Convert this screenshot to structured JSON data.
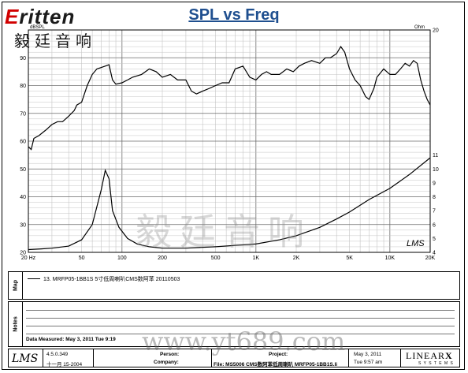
{
  "logo": {
    "brand_prefix": "E",
    "brand_rest": "ritten",
    "chinese": "毅廷音响"
  },
  "title": "SPL vs Freq",
  "chart_data": {
    "type": "line",
    "title": "SPL vs Freq",
    "xscale": "log",
    "xlim": [
      20,
      20000
    ],
    "ylim_left": [
      20,
      100
    ],
    "ylim_right": [
      4,
      20
    ],
    "left_unit": "dBSPL",
    "right_unit": "Ohm",
    "grid": true,
    "x_ticks": [
      {
        "v": 20,
        "label": "20 Hz"
      },
      {
        "v": 50,
        "label": "50"
      },
      {
        "v": 100,
        "label": "100"
      },
      {
        "v": 200,
        "label": "200"
      },
      {
        "v": 500,
        "label": "500"
      },
      {
        "v": 1000,
        "label": "1K"
      },
      {
        "v": 2000,
        "label": "2K"
      },
      {
        "v": 5000,
        "label": "5K"
      },
      {
        "v": 10000,
        "label": "10K"
      },
      {
        "v": 20000,
        "label": "20K"
      }
    ],
    "y_ticks_left": [
      {
        "v": 20,
        "label": "20"
      },
      {
        "v": 30,
        "label": "30"
      },
      {
        "v": 40,
        "label": "40"
      },
      {
        "v": 50,
        "label": "50"
      },
      {
        "v": 60,
        "label": "60"
      },
      {
        "v": 70,
        "label": "70"
      },
      {
        "v": 80,
        "label": "80"
      },
      {
        "v": 90,
        "label": "90"
      }
    ],
    "y_ticks_right": [
      {
        "v": 4,
        "label": "4"
      },
      {
        "v": 5,
        "label": "5"
      },
      {
        "v": 6,
        "label": "6"
      },
      {
        "v": 7,
        "label": "7"
      },
      {
        "v": 8,
        "label": "8"
      },
      {
        "v": 9,
        "label": "9"
      },
      {
        "v": 10,
        "label": "10"
      },
      {
        "v": 11,
        "label": "11"
      },
      {
        "v": 20,
        "label": "20"
      }
    ],
    "series": [
      {
        "axis": "left",
        "color": "#000000",
        "points": [
          [
            20,
            58
          ],
          [
            21,
            57
          ],
          [
            22,
            61
          ],
          [
            24,
            62
          ],
          [
            27,
            64
          ],
          [
            30,
            66
          ],
          [
            33,
            67
          ],
          [
            36,
            67
          ],
          [
            40,
            69
          ],
          [
            44,
            71
          ],
          [
            46,
            73
          ],
          [
            50,
            74
          ],
          [
            55,
            80
          ],
          [
            60,
            84
          ],
          [
            65,
            86
          ],
          [
            70,
            86.5
          ],
          [
            75,
            87
          ],
          [
            80,
            87.5
          ],
          [
            85,
            82
          ],
          [
            90,
            80.5
          ],
          [
            100,
            81
          ],
          [
            110,
            82
          ],
          [
            120,
            83
          ],
          [
            140,
            84
          ],
          [
            160,
            86
          ],
          [
            180,
            85
          ],
          [
            200,
            83
          ],
          [
            230,
            84
          ],
          [
            260,
            82
          ],
          [
            300,
            82
          ],
          [
            330,
            78
          ],
          [
            360,
            77
          ],
          [
            400,
            78
          ],
          [
            450,
            79
          ],
          [
            500,
            80
          ],
          [
            560,
            81
          ],
          [
            630,
            81
          ],
          [
            700,
            86
          ],
          [
            800,
            87
          ],
          [
            900,
            83
          ],
          [
            1000,
            82
          ],
          [
            1100,
            84
          ],
          [
            1200,
            85
          ],
          [
            1300,
            84
          ],
          [
            1500,
            84
          ],
          [
            1700,
            86
          ],
          [
            1900,
            85
          ],
          [
            2100,
            87
          ],
          [
            2300,
            88
          ],
          [
            2600,
            89
          ],
          [
            3000,
            88
          ],
          [
            3300,
            90
          ],
          [
            3600,
            90
          ],
          [
            4000,
            91.5
          ],
          [
            4300,
            94
          ],
          [
            4600,
            92
          ],
          [
            5000,
            86
          ],
          [
            5500,
            82
          ],
          [
            6000,
            80
          ],
          [
            6600,
            76
          ],
          [
            7000,
            75
          ],
          [
            7600,
            79
          ],
          [
            8000,
            83
          ],
          [
            9000,
            86
          ],
          [
            10000,
            84
          ],
          [
            11000,
            84
          ],
          [
            12000,
            86
          ],
          [
            13000,
            88
          ],
          [
            14000,
            87
          ],
          [
            15000,
            89
          ],
          [
            16000,
            88
          ],
          [
            17000,
            82
          ],
          [
            18000,
            78
          ],
          [
            19000,
            75
          ],
          [
            20000,
            73
          ]
        ]
      },
      {
        "axis": "right",
        "color": "#000000",
        "points": [
          [
            20,
            4.2
          ],
          [
            25,
            4.25
          ],
          [
            30,
            4.3
          ],
          [
            40,
            4.45
          ],
          [
            50,
            4.9
          ],
          [
            60,
            6.0
          ],
          [
            70,
            8.5
          ],
          [
            75,
            9.9
          ],
          [
            80,
            9.3
          ],
          [
            85,
            7.0
          ],
          [
            95,
            5.8
          ],
          [
            110,
            5.0
          ],
          [
            130,
            4.6
          ],
          [
            160,
            4.4
          ],
          [
            200,
            4.3
          ],
          [
            300,
            4.3
          ],
          [
            500,
            4.4
          ],
          [
            700,
            4.5
          ],
          [
            1000,
            4.6
          ],
          [
            1500,
            4.9
          ],
          [
            2000,
            5.2
          ],
          [
            3000,
            5.8
          ],
          [
            4000,
            6.4
          ],
          [
            5000,
            6.9
          ],
          [
            7000,
            7.8
          ],
          [
            10000,
            8.6
          ],
          [
            14000,
            9.6
          ],
          [
            20000,
            10.8
          ]
        ]
      }
    ],
    "annotations": {
      "left_top": "dBSPL",
      "right_top": "Ohm",
      "lms_mark": "LMS"
    }
  },
  "map_panel": {
    "label": "Map",
    "legend": "13. MRFP05-1BB1S 5寸低周喇叭CMS数阿苯 20110503"
  },
  "notes_panel": {
    "label": "Notes",
    "date_measured": "Data Measured: May  3, 2011   Tue  9:19"
  },
  "footer": {
    "lms_logo": "LMS",
    "version": "4.5.0.349",
    "build_date": "十一月 15-2004",
    "person_label": "Person:",
    "company_label": "Company:",
    "project_label": "Project:",
    "file_text": "File: MS5006 CMS数阿苯低周喇叭 MRFP05-1BB1S.li",
    "date": "May  3, 2011",
    "time": "Tue  9:57 am",
    "linear_logo": "LINEAR",
    "linear_x": "X",
    "linear_sub": "S Y S T E M S"
  },
  "watermark": "毅廷音响",
  "url_mark": "www.yt689.com"
}
